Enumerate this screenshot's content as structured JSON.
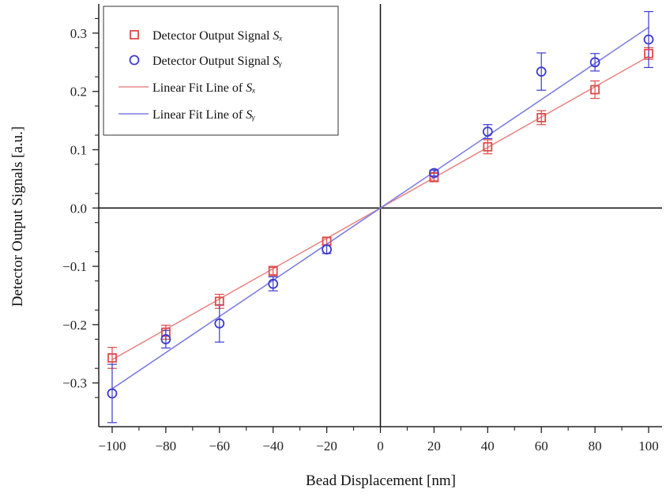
{
  "chart_data": {
    "type": "scatter",
    "xlabel": "Bead Displacement [nm]",
    "ylabel": "Detector Output Signals [a.u.]",
    "xlim": [
      -105,
      105
    ],
    "ylim": [
      -0.375,
      0.35
    ],
    "x_ticks": [
      -100,
      -80,
      -60,
      -40,
      -20,
      0,
      20,
      40,
      60,
      80,
      100
    ],
    "x_tick_labels": [
      "−100",
      "−80",
      "−60",
      "−40",
      "−20",
      "0",
      "20",
      "40",
      "60",
      "80",
      "100"
    ],
    "y_ticks": [
      -0.3,
      -0.2,
      -0.1,
      0.0,
      0.1,
      0.2,
      0.3
    ],
    "y_tick_labels": [
      "−0.3",
      "−0.2",
      "−0.1",
      "0.0",
      "0.1",
      "0.2",
      "0.3"
    ],
    "grid": false,
    "legend_position": "top-left",
    "series": [
      {
        "name": "Detector Output Signal Sx",
        "legend_text": "Detector Output Signal ",
        "legend_sub": "Sₓ",
        "marker": "square",
        "color": "#e04a4a",
        "x": [
          -100,
          -80,
          -60,
          -40,
          -20,
          20,
          40,
          60,
          80,
          100
        ],
        "y": [
          -0.257,
          -0.213,
          -0.16,
          -0.108,
          -0.057,
          0.053,
          0.105,
          0.155,
          0.203,
          0.265
        ],
        "err": [
          0.018,
          0.012,
          0.012,
          0.008,
          0.006,
          0.008,
          0.012,
          0.012,
          0.015,
          0.01
        ]
      },
      {
        "name": "Detector Output Signal Sy",
        "legend_text": "Detector Output Signal ",
        "legend_sub": "Sᵧ",
        "marker": "circle",
        "color": "#3b3bcf",
        "x": [
          -100,
          -80,
          -60,
          -40,
          -20,
          20,
          40,
          60,
          80,
          100
        ],
        "y": [
          -0.318,
          -0.225,
          -0.198,
          -0.13,
          -0.071,
          0.06,
          0.131,
          0.234,
          0.25,
          0.289
        ],
        "err": [
          0.05,
          0.015,
          0.032,
          0.012,
          0.007,
          0.005,
          0.012,
          0.032,
          0.015,
          0.048
        ]
      }
    ],
    "fits": [
      {
        "name": "Linear Fit Line of Sx",
        "legend_text": "Linear Fit Line of ",
        "legend_sub": "Sₓ",
        "color": "#e88a8a",
        "slope": 0.0026
      },
      {
        "name": "Linear Fit Line of Sy",
        "legend_text": "Linear Fit Line of ",
        "legend_sub": "Sᵧ",
        "color": "#7f7fe0",
        "slope": 0.0031
      }
    ]
  }
}
